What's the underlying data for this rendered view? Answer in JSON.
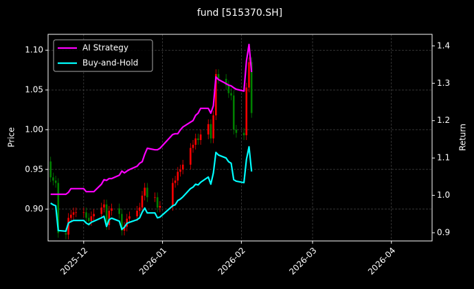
{
  "chart_data": {
    "type": "candlestick",
    "title": "fund [515370.SH]",
    "ylabel": "Price",
    "y2label": "Return",
    "x": [
      "2025-11-18",
      "2025-11-19",
      "2025-11-20",
      "2025-11-21",
      "2025-11-24",
      "2025-11-25",
      "2025-11-26",
      "2025-11-27",
      "2025-11-28",
      "2025-12-01",
      "2025-12-02",
      "2025-12-03",
      "2025-12-04",
      "2025-12-05",
      "2025-12-08",
      "2025-12-09",
      "2025-12-10",
      "2025-12-11",
      "2025-12-12",
      "2025-12-15",
      "2025-12-16",
      "2025-12-17",
      "2025-12-18",
      "2025-12-19",
      "2025-12-22",
      "2025-12-23",
      "2025-12-24",
      "2025-12-25",
      "2025-12-26",
      "2025-12-29",
      "2025-12-30",
      "2025-12-31",
      "2026-01-05",
      "2026-01-06",
      "2026-01-07",
      "2026-01-08",
      "2026-01-09",
      "2026-01-12",
      "2026-01-13",
      "2026-01-14",
      "2026-01-15",
      "2026-01-16",
      "2026-01-19",
      "2026-01-20",
      "2026-01-21",
      "2026-01-22",
      "2026-01-23",
      "2026-01-26",
      "2026-01-27",
      "2026-01-28",
      "2026-01-29",
      "2026-01-30",
      "2026-02-02",
      "2026-02-03",
      "2026-02-04",
      "2026-02-05"
    ],
    "open": [
      0.96,
      0.94,
      0.936,
      0.933,
      0.87,
      0.868,
      0.889,
      0.893,
      0.896,
      0.896,
      0.896,
      0.889,
      0.885,
      0.891,
      0.894,
      0.902,
      0.906,
      0.88,
      0.898,
      0.901,
      0.894,
      0.873,
      0.878,
      0.888,
      0.891,
      0.898,
      0.902,
      0.917,
      0.927,
      0.915,
      0.915,
      0.902,
      0.904,
      0.933,
      0.936,
      0.947,
      0.95,
      0.956,
      0.977,
      0.981,
      0.989,
      0.987,
      0.994,
      1.007,
      0.989,
      1.018,
      1.07,
      1.064,
      1.056,
      1.046,
      1.043,
      1.0,
      0.996,
      0.993,
      1.053,
      1.085
    ],
    "high": [
      0.966,
      0.946,
      0.942,
      0.939,
      0.876,
      0.895,
      0.899,
      0.902,
      0.902,
      0.902,
      0.902,
      0.895,
      0.897,
      0.9,
      0.908,
      0.912,
      0.912,
      0.904,
      0.907,
      0.907,
      0.9,
      0.884,
      0.894,
      0.897,
      0.904,
      0.908,
      0.923,
      0.933,
      0.933,
      0.921,
      0.921,
      0.91,
      0.939,
      0.942,
      0.953,
      0.956,
      0.962,
      0.983,
      0.987,
      0.995,
      0.995,
      1.0,
      1.013,
      1.013,
      1.024,
      1.076,
      1.076,
      1.07,
      1.062,
      1.052,
      1.049,
      1.006,
      1.002,
      1.059,
      1.091,
      1.091
    ],
    "low": [
      0.934,
      0.93,
      0.927,
      0.864,
      0.862,
      0.862,
      0.883,
      0.887,
      0.89,
      0.89,
      0.883,
      0.879,
      0.879,
      0.885,
      0.888,
      0.896,
      0.874,
      0.874,
      0.892,
      0.888,
      0.867,
      0.867,
      0.872,
      0.882,
      0.885,
      0.892,
      0.896,
      0.911,
      0.909,
      0.909,
      0.896,
      0.896,
      0.898,
      0.927,
      0.93,
      0.941,
      0.944,
      0.95,
      0.971,
      0.975,
      0.981,
      0.981,
      0.988,
      0.983,
      0.983,
      1.012,
      1.058,
      1.05,
      1.04,
      1.037,
      0.994,
      0.99,
      0.987,
      0.987,
      1.047,
      1.015
    ],
    "close": [
      0.94,
      0.936,
      0.933,
      0.87,
      0.868,
      0.889,
      0.893,
      0.896,
      0.896,
      0.896,
      0.889,
      0.885,
      0.891,
      0.894,
      0.902,
      0.906,
      0.88,
      0.898,
      0.901,
      0.894,
      0.873,
      0.878,
      0.888,
      0.891,
      0.898,
      0.902,
      0.917,
      0.927,
      0.915,
      0.915,
      0.902,
      0.904,
      0.933,
      0.936,
      0.947,
      0.95,
      0.956,
      0.977,
      0.981,
      0.989,
      0.987,
      0.994,
      1.007,
      0.989,
      1.018,
      1.07,
      1.064,
      1.056,
      1.046,
      1.043,
      1.0,
      0.996,
      0.993,
      1.053,
      1.085,
      1.021
    ],
    "up_color": "#ff0000",
    "down_color": "#008000",
    "series": [
      {
        "name": "AI Strategy",
        "color": "#ff00ff",
        "axis": "y2",
        "values": [
          1.003,
          1.003,
          1.003,
          1.003,
          1.003,
          1.008,
          1.018,
          1.018,
          1.018,
          1.018,
          1.01,
          1.01,
          1.01,
          1.01,
          1.03,
          1.042,
          1.04,
          1.045,
          1.045,
          1.054,
          1.065,
          1.06,
          1.065,
          1.069,
          1.078,
          1.086,
          1.09,
          1.11,
          1.126,
          1.122,
          1.122,
          1.126,
          1.163,
          1.165,
          1.165,
          1.175,
          1.183,
          1.196,
          1.2,
          1.214,
          1.22,
          1.233,
          1.233,
          1.22,
          1.24,
          1.317,
          1.31,
          1.299,
          1.295,
          1.293,
          1.288,
          1.284,
          1.279,
          1.36,
          1.404,
          1.33
        ]
      },
      {
        "name": "Buy-and-Hold",
        "color": "#00ffff",
        "axis": "y2",
        "values": [
          0.979,
          0.975,
          0.972,
          0.906,
          0.904,
          0.926,
          0.93,
          0.933,
          0.933,
          0.933,
          0.926,
          0.922,
          0.928,
          0.931,
          0.94,
          0.944,
          0.917,
          0.935,
          0.939,
          0.931,
          0.909,
          0.915,
          0.925,
          0.928,
          0.935,
          0.94,
          0.955,
          0.966,
          0.953,
          0.953,
          0.94,
          0.942,
          0.972,
          0.975,
          0.986,
          0.99,
          0.996,
          1.018,
          1.022,
          1.03,
          1.028,
          1.035,
          1.049,
          1.03,
          1.06,
          1.115,
          1.108,
          1.1,
          1.09,
          1.086,
          1.042,
          1.038,
          1.034,
          1.097,
          1.13,
          1.064
        ]
      }
    ],
    "xlim": [
      "2025-11-17",
      "2026-04-17"
    ],
    "xticks": [
      "2025-12",
      "2026-01",
      "2026-02",
      "2026-03",
      "2026-04"
    ],
    "ylim": [
      0.86,
      1.12
    ],
    "yticks": [
      {
        "value": 0.9,
        "label": "0.90"
      },
      0.95,
      {
        "value": 1.0,
        "label": "1.00"
      },
      1.05,
      {
        "value": 1.1,
        "label": "1.10"
      }
    ],
    "y2lim": [
      0.878,
      1.431
    ],
    "y2ticks": [
      0.9,
      {
        "value": 1.0,
        "label": "1.0"
      },
      1.1,
      1.2,
      1.3,
      1.4
    ],
    "grid": true,
    "legend": "upper left"
  }
}
